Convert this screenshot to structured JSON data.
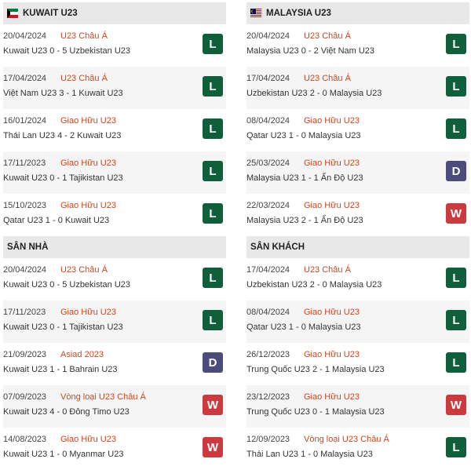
{
  "colors": {
    "L": "#0e5f3a",
    "D": "#4c4c7c",
    "W": "#cc3a40",
    "competition": "#d0451b"
  },
  "panels": [
    {
      "id": "left",
      "sections": [
        {
          "title": "KUWAIT U23",
          "flag": "kuwait-flag-icon",
          "matches": [
            {
              "date": "20/04/2024",
              "comp": "U23 Châu Á",
              "teams": "Kuwait U23 0 - 5 Uzbekistan U23",
              "result": "L"
            },
            {
              "date": "17/04/2024",
              "comp": "U23 Châu Á",
              "teams": "Việt Nam U23 3 - 1 Kuwait U23",
              "result": "L"
            },
            {
              "date": "16/01/2024",
              "comp": "Giao Hữu U23",
              "teams": "Thái Lan U23 4 - 2 Kuwait U23",
              "result": "L"
            },
            {
              "date": "17/11/2023",
              "comp": "Giao Hữu U23",
              "teams": "Kuwait U23 0 - 1 Tajikistan U23",
              "result": "L"
            },
            {
              "date": "15/10/2023",
              "comp": "Giao Hữu U23",
              "teams": "Qatar U23 1 - 0 Kuwait U23",
              "result": "L"
            }
          ]
        },
        {
          "title": "SÂN NHÀ",
          "matches": [
            {
              "date": "20/04/2024",
              "comp": "U23 Châu Á",
              "teams": "Kuwait U23 0 - 5 Uzbekistan U23",
              "result": "L"
            },
            {
              "date": "17/11/2023",
              "comp": "Giao Hữu U23",
              "teams": "Kuwait U23 0 - 1 Tajikistan U23",
              "result": "L"
            },
            {
              "date": "21/09/2023",
              "comp": "Asiad 2023",
              "teams": "Kuwait U23 1 - 1 Bahrain U23",
              "result": "D"
            },
            {
              "date": "07/09/2023",
              "comp": "Vòng loại U23 Châu Á",
              "teams": "Kuwait U23 4 - 0 Đông Timo U23",
              "result": "W"
            },
            {
              "date": "14/08/2023",
              "comp": "Giao Hữu U23",
              "teams": "Kuwait U23 1 - 0 Myanmar U23",
              "result": "W"
            }
          ]
        }
      ]
    },
    {
      "id": "right",
      "sections": [
        {
          "title": "MALAYSIA U23",
          "flag": "malaysia-flag-icon",
          "matches": [
            {
              "date": "20/04/2024",
              "comp": "U23 Châu Á",
              "teams": "Malaysia U23 0 - 2 Việt Nam U23",
              "result": "L"
            },
            {
              "date": "17/04/2024",
              "comp": "U23 Châu Á",
              "teams": "Uzbekistan U23 2 - 0 Malaysia U23",
              "result": "L"
            },
            {
              "date": "08/04/2024",
              "comp": "Giao Hữu U23",
              "teams": "Qatar U23 1 - 0 Malaysia U23",
              "result": "L"
            },
            {
              "date": "25/03/2024",
              "comp": "Giao Hữu U23",
              "teams": "Malaysia U23 1 - 1 Ấn Độ U23",
              "result": "D"
            },
            {
              "date": "22/03/2024",
              "comp": "Giao Hữu U23",
              "teams": "Malaysia U23 2 - 1 Ấn Độ U23",
              "result": "W"
            }
          ]
        },
        {
          "title": "SÂN KHÁCH",
          "matches": [
            {
              "date": "17/04/2024",
              "comp": "U23 Châu Á",
              "teams": "Uzbekistan U23 2 - 0 Malaysia U23",
              "result": "L"
            },
            {
              "date": "08/04/2024",
              "comp": "Giao Hữu U23",
              "teams": "Qatar U23 1 - 0 Malaysia U23",
              "result": "L"
            },
            {
              "date": "26/12/2023",
              "comp": "Giao Hữu U23",
              "teams": "Trung Quốc U23 2 - 1 Malaysia U23",
              "result": "L"
            },
            {
              "date": "23/12/2023",
              "comp": "Giao Hữu U23",
              "teams": "Trung Quốc U23 0 - 1 Malaysia U23",
              "result": "W"
            },
            {
              "date": "12/09/2023",
              "comp": "Vòng loại U23 Châu Á",
              "teams": "Thái Lan U23 1 - 0 Malaysia U23",
              "result": "L"
            }
          ]
        }
      ]
    }
  ]
}
